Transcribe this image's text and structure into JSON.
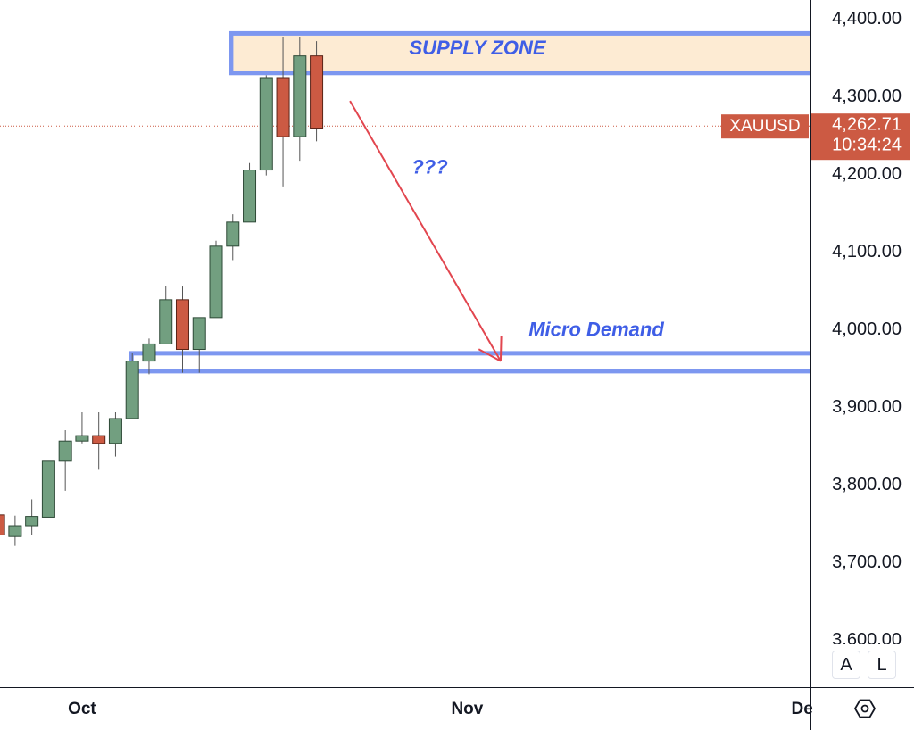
{
  "chart_data": {
    "type": "candlestick",
    "symbol": "XAUUSD",
    "last_price": {
      "value": 4262.71,
      "label": "4,262.71"
    },
    "countdown": "10:34:24",
    "x": [
      0,
      1,
      2,
      3,
      4,
      5,
      6,
      7,
      8,
      9,
      10,
      11,
      12,
      13,
      14,
      15,
      16,
      17,
      18,
      19
    ],
    "open": [
      3762,
      3734,
      3748,
      3759,
      3831,
      3857,
      3864,
      3854,
      3886,
      3960,
      3982,
      4039,
      3975,
      4016,
      4108,
      4139,
      4206,
      4325,
      4249,
      4353
    ],
    "high": [
      3762,
      3761,
      3782,
      3831,
      3871,
      3894,
      3894,
      3894,
      3971,
      3989,
      4057,
      4056,
      4016,
      4115,
      4149,
      4215,
      4328,
      4377,
      4377,
      4372
    ],
    "low": [
      3736,
      3722,
      3736,
      3759,
      3793,
      3854,
      3820,
      3837,
      3885,
      3943,
      3982,
      3945,
      3945,
      4016,
      4090,
      4139,
      4199,
      4185,
      4218,
      4243
    ],
    "close": [
      3736,
      3748,
      3760,
      3831,
      3857,
      3864,
      3854,
      3886,
      3960,
      3982,
      4039,
      3975,
      4016,
      4108,
      4139,
      4206,
      4325,
      4249,
      4353,
      4260
    ],
    "up_color": "#729f80",
    "down_color": "#cc5a43",
    "xlim": [
      0.1,
      48.5
    ],
    "ylim": [
      3540,
      4425
    ],
    "xticks": [
      {
        "value": 5,
        "label": "Oct"
      },
      {
        "value": 28,
        "label": "Nov"
      },
      {
        "value": 48,
        "label": "De"
      }
    ],
    "yticks": [
      {
        "value": 4400,
        "label": "4,400.00"
      },
      {
        "value": 4300,
        "label": "4,300.00"
      },
      {
        "value": 4200,
        "label": "4,200.00"
      },
      {
        "value": 4100,
        "label": "4,100.00"
      },
      {
        "value": 4000,
        "label": "4,000.00"
      },
      {
        "value": 3900,
        "label": "3,900.00"
      },
      {
        "value": 3800,
        "label": "3,800.00"
      },
      {
        "value": 3700,
        "label": "3,700.00"
      },
      {
        "value": 3600,
        "label": "3,600.00"
      }
    ],
    "zones": [
      {
        "label": "SUPPLY ZONE",
        "low": 4331,
        "high": 4382,
        "x_start": 13.9
      },
      {
        "label": "Micro Demand",
        "low": 3947,
        "high": 3970,
        "x_start": 7.95
      }
    ],
    "arrow": {
      "label": "???",
      "x": [
        21,
        30
      ],
      "y": [
        4295,
        3960
      ]
    },
    "scale_buttons": [
      "A",
      "L"
    ]
  }
}
